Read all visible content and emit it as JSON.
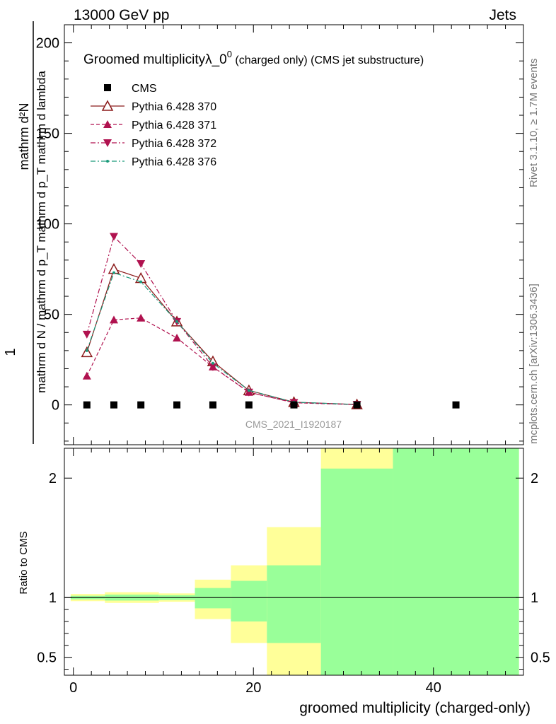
{
  "header": {
    "left": "13000 GeV pp",
    "right": "Jets"
  },
  "side_text": {
    "rivet": "Rivet 3.1.10, ≥ 1.7M events",
    "mcplots": "mcplots.cern.ch [arXiv:1306.3436]"
  },
  "plot": {
    "title": "Groomed multiplicityλ_0",
    "title_sup": "0",
    "title_suffix": " (charged only) (CMS jet substructure)",
    "ylabel_top": "1",
    "ylabel_num": "mathrm d²N",
    "ylabel_den": "mathrm d N / mathrm d p_T mathrm d p_T mathrm d lambda",
    "watermark": "CMS_2021_I1920187",
    "ratio_ylabel": "Ratio to CMS",
    "xlabel": "groomed multiplicity (charged-only)"
  },
  "legend": [
    {
      "label": "CMS",
      "color": "#000000",
      "marker": "square",
      "dash": "none"
    },
    {
      "label": "Pythia 6.428 370",
      "color": "#8b1a1a",
      "marker": "open-triangle",
      "dash": "solid"
    },
    {
      "label": "Pythia 6.428 371",
      "color": "#b0124f",
      "marker": "triangle-up",
      "dash": "dashed"
    },
    {
      "label": "Pythia 6.428 372",
      "color": "#b0124f",
      "marker": "triangle-down",
      "dash": "dashdot"
    },
    {
      "label": "Pythia 6.428 376",
      "color": "#1a9a7a",
      "marker": "dot",
      "dash": "dashdot"
    }
  ],
  "chart_data": {
    "type": "line",
    "xlim": [
      -1,
      50
    ],
    "ylim": [
      -22,
      210
    ],
    "ratio_ylim": [
      0.35,
      2.25
    ],
    "x_ticks": [
      0,
      20,
      40
    ],
    "y_ticks": [
      0,
      50,
      100,
      150,
      200
    ],
    "ratio_ticks": [
      0.5,
      1,
      2
    ],
    "cms": {
      "x": [
        1.5,
        4.5,
        7.5,
        11.5,
        15.5,
        19.5,
        24.5,
        31.5,
        42.5
      ],
      "y": [
        0,
        0,
        0,
        0,
        0,
        0,
        0,
        0,
        0
      ]
    },
    "series": [
      {
        "name": "Pythia 6.428 370",
        "x": [
          1.5,
          4.5,
          7.5,
          11.5,
          15.5,
          19.5,
          24.5,
          31.5
        ],
        "y": [
          29,
          75,
          70,
          46,
          24,
          8,
          1.5,
          0.2
        ]
      },
      {
        "name": "Pythia 6.428 371",
        "x": [
          1.5,
          4.5,
          7.5,
          11.5,
          15.5,
          19.5,
          24.5,
          31.5
        ],
        "y": [
          16,
          47,
          48,
          37,
          21,
          7,
          1.2,
          0.1
        ]
      },
      {
        "name": "Pythia 6.428 372",
        "x": [
          1.5,
          4.5,
          7.5,
          11.5,
          15.5,
          19.5,
          24.5,
          31.5
        ],
        "y": [
          39,
          93,
          78,
          46,
          21,
          7,
          1.3,
          0.2
        ]
      },
      {
        "name": "Pythia 6.428 376",
        "x": [
          1.5,
          4.5,
          7.5,
          11.5,
          15.5,
          19.5,
          24.5,
          31.5
        ],
        "y": [
          30,
          73,
          68,
          46,
          23,
          8,
          1.5,
          0.2
        ]
      }
    ],
    "ratio_bands": [
      {
        "x0": -0.3,
        "x1": 3.5,
        "yellow": [
          0.97,
          1.03
        ],
        "green": [
          0.985,
          1.015
        ]
      },
      {
        "x0": 3.5,
        "x1": 9.5,
        "yellow": [
          0.955,
          1.045
        ],
        "green": [
          0.975,
          1.025
        ]
      },
      {
        "x0": 9.5,
        "x1": 13.5,
        "yellow": [
          0.965,
          1.035
        ],
        "green": [
          0.98,
          1.02
        ]
      },
      {
        "x0": 13.5,
        "x1": 17.5,
        "yellow": [
          0.82,
          1.15
        ],
        "green": [
          0.91,
          1.08
        ]
      },
      {
        "x0": 17.5,
        "x1": 21.5,
        "yellow": [
          0.62,
          1.27
        ],
        "green": [
          0.8,
          1.14
        ]
      },
      {
        "x0": 21.5,
        "x1": 27.5,
        "yellow": [
          0.35,
          1.59
        ],
        "green": [
          0.62,
          1.27
        ]
      },
      {
        "x0": 27.5,
        "x1": 35.5,
        "yellow": [
          0.35,
          2.25
        ],
        "green": [
          0.35,
          2.08
        ]
      },
      {
        "x0": 35.5,
        "x1": 49.5,
        "yellow": [
          0.35,
          2.25
        ],
        "green": [
          0.35,
          2.25
        ]
      }
    ]
  }
}
